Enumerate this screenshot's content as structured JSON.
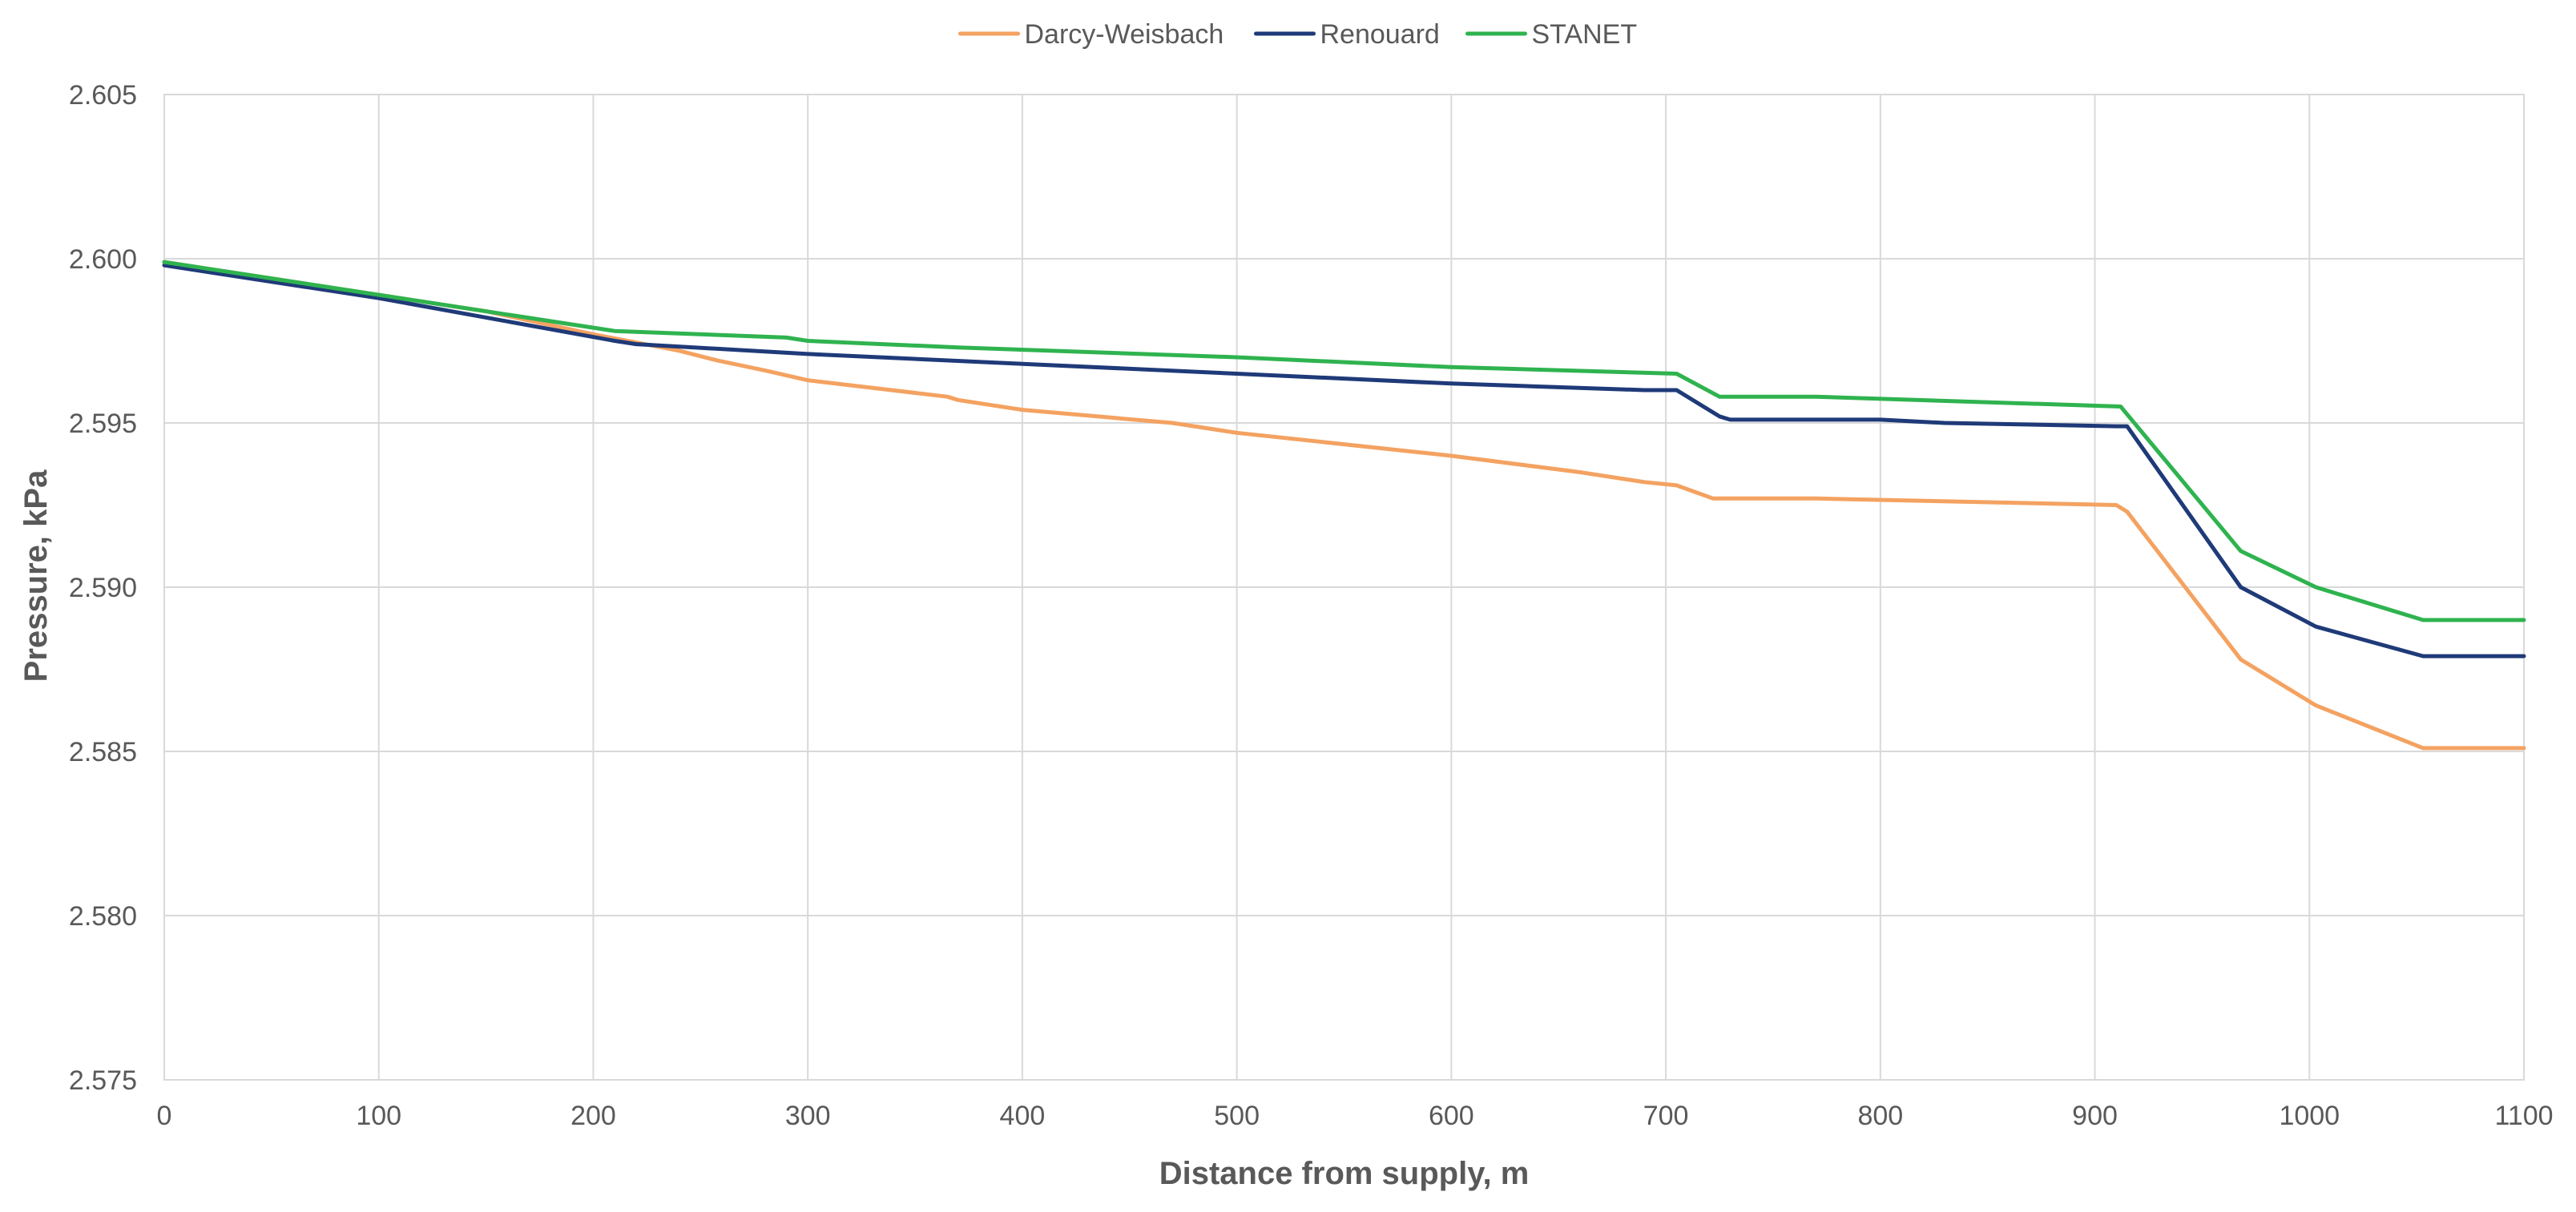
{
  "chart_data": {
    "type": "line",
    "title": "",
    "xlabel": "Distance from supply, m",
    "ylabel": "Pressure, kPa",
    "xlim": [
      0,
      1100
    ],
    "ylim": [
      2.575,
      2.605
    ],
    "x_ticks": [
      0,
      100,
      200,
      300,
      400,
      500,
      600,
      700,
      800,
      900,
      1000,
      1100
    ],
    "x_tick_labels": [
      "0",
      "100",
      "200",
      "300",
      "400",
      "500",
      "600",
      "700",
      "800",
      "900",
      "1000",
      "1100"
    ],
    "y_ticks": [
      2.575,
      2.58,
      2.585,
      2.59,
      2.595,
      2.6,
      2.605
    ],
    "y_tick_labels": [
      "2.575",
      "2.580",
      "2.585",
      "2.590",
      "2.595",
      "2.600",
      "2.605"
    ],
    "grid": true,
    "legend_position": "top-center",
    "series": [
      {
        "name": "Darcy-Weisbach",
        "color": "#f4a261",
        "points": [
          [
            0,
            2.5999
          ],
          [
            100,
            2.5989
          ],
          [
            150,
            2.5984
          ],
          [
            200,
            2.5977
          ],
          [
            240,
            2.5972
          ],
          [
            258,
            2.5969
          ],
          [
            280,
            2.5966
          ],
          [
            300,
            2.5963
          ],
          [
            365,
            2.5958
          ],
          [
            370,
            2.5957
          ],
          [
            400,
            2.5954
          ],
          [
            470,
            2.595
          ],
          [
            500,
            2.5947
          ],
          [
            600,
            2.594
          ],
          [
            660,
            2.5935
          ],
          [
            690,
            2.5932
          ],
          [
            705,
            2.5931
          ],
          [
            722,
            2.5927
          ],
          [
            770,
            2.5927
          ],
          [
            910,
            2.5925
          ],
          [
            915,
            2.5923
          ],
          [
            968,
            2.5878
          ],
          [
            1003,
            2.5864
          ],
          [
            1053,
            2.5851
          ],
          [
            1100,
            2.5851
          ]
        ]
      },
      {
        "name": "Renouard",
        "color": "#1f3a78",
        "points": [
          [
            0,
            2.5998
          ],
          [
            100,
            2.5988
          ],
          [
            210,
            2.5975
          ],
          [
            220,
            2.5974
          ],
          [
            300,
            2.5971
          ],
          [
            400,
            2.5968
          ],
          [
            500,
            2.5965
          ],
          [
            600,
            2.5962
          ],
          [
            690,
            2.596
          ],
          [
            705,
            2.596
          ],
          [
            725,
            2.5952
          ],
          [
            730,
            2.5951
          ],
          [
            800,
            2.5951
          ],
          [
            830,
            2.595
          ],
          [
            910,
            2.5949
          ],
          [
            915,
            2.5949
          ],
          [
            968,
            2.59
          ],
          [
            1003,
            2.5888
          ],
          [
            1053,
            2.5879
          ],
          [
            1100,
            2.5879
          ]
        ]
      },
      {
        "name": "STANET",
        "color": "#2fb34f",
        "points": [
          [
            0,
            2.5999
          ],
          [
            100,
            2.5989
          ],
          [
            210,
            2.5978
          ],
          [
            290,
            2.5976
          ],
          [
            300,
            2.5975
          ],
          [
            370,
            2.5973
          ],
          [
            500,
            2.597
          ],
          [
            600,
            2.5967
          ],
          [
            705,
            2.5965
          ],
          [
            725,
            2.5958
          ],
          [
            770,
            2.5958
          ],
          [
            912,
            2.5955
          ],
          [
            968,
            2.5911
          ],
          [
            1003,
            2.59
          ],
          [
            1053,
            2.589
          ],
          [
            1100,
            2.589
          ]
        ]
      }
    ]
  }
}
